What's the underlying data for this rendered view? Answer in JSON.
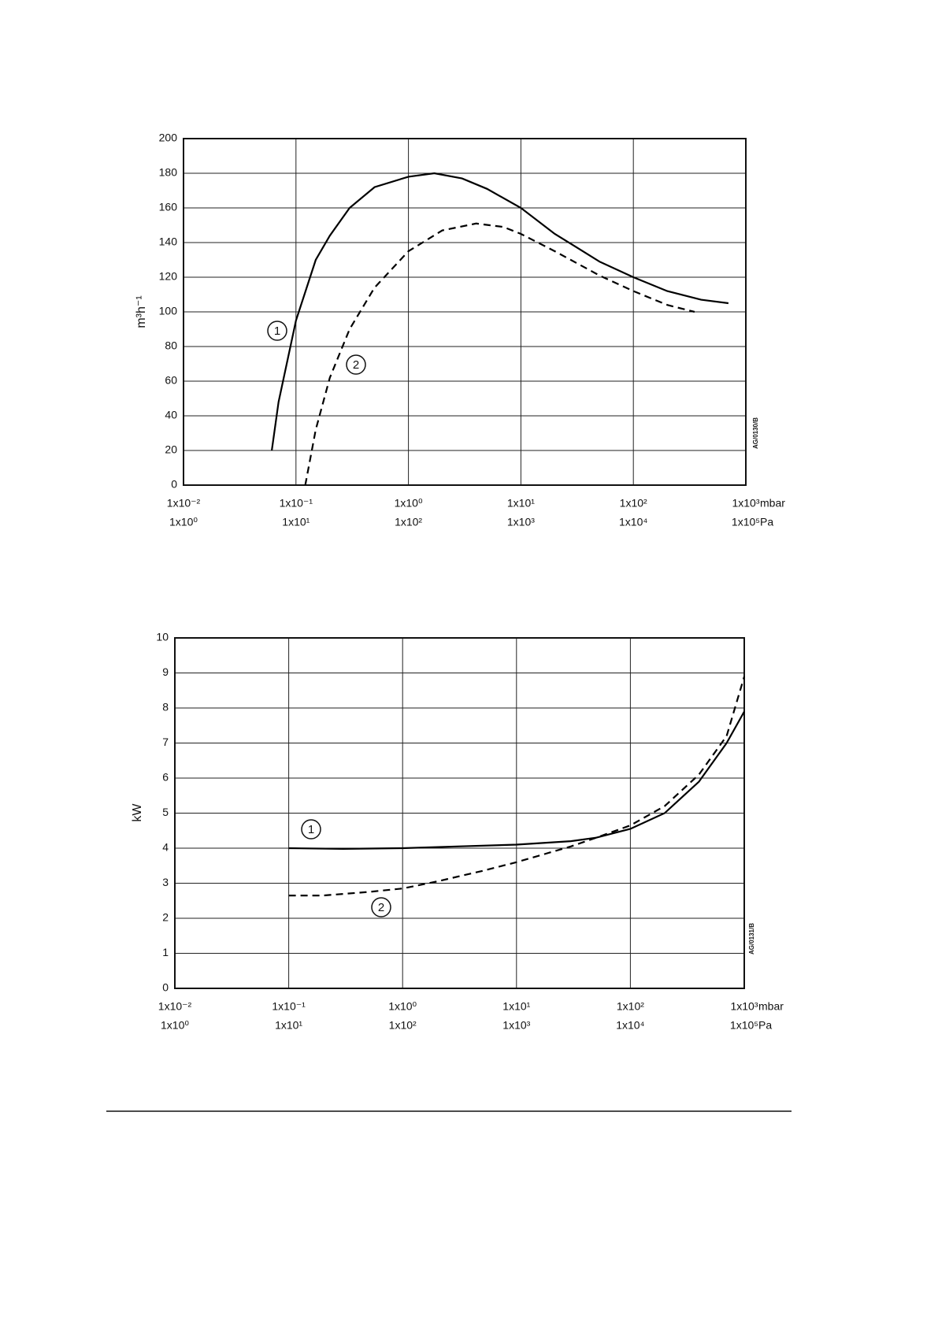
{
  "chart_data": [
    {
      "type": "line",
      "y_label": "m³h⁻¹",
      "x_unit": "mbar",
      "x2_unit": "Pa",
      "annotation": "AG/0130/B",
      "xscale": "log",
      "grid": true,
      "xlim": [
        0.01,
        1000
      ],
      "xticks": [
        {
          "value": 0.01,
          "label": "1x10⁻²"
        },
        {
          "value": 0.1,
          "label": "1x10⁻¹"
        },
        {
          "value": 1,
          "label": "1x10⁰"
        },
        {
          "value": 10,
          "label": "1x10¹"
        },
        {
          "value": 100,
          "label": "1x10²"
        },
        {
          "value": 1000,
          "label": "1x10³"
        }
      ],
      "x2ticks": [
        {
          "value": 0.01,
          "label": "1x10⁰"
        },
        {
          "value": 0.1,
          "label": "1x10¹"
        },
        {
          "value": 1,
          "label": "1x10²"
        },
        {
          "value": 10,
          "label": "1x10³"
        },
        {
          "value": 100,
          "label": "1x10⁴"
        },
        {
          "value": 1000,
          "label": "1x10⁵"
        }
      ],
      "ylim": [
        0,
        200
      ],
      "yticks": [
        0,
        20,
        40,
        60,
        80,
        100,
        120,
        140,
        160,
        180,
        200
      ],
      "series": [
        {
          "name": "1",
          "color": "#000000",
          "dashed": false,
          "x": [
            0.061,
            0.07,
            0.1,
            0.15,
            0.2,
            0.3,
            0.5,
            1,
            1.7,
            3,
            5,
            10,
            20,
            30,
            50,
            100,
            200,
            400,
            700
          ],
          "values": [
            20,
            48,
            95,
            130,
            144,
            160,
            172,
            178,
            180,
            177,
            171,
            160,
            145,
            138,
            129,
            120,
            112,
            107,
            105
          ]
        },
        {
          "name": "2",
          "color": "#000000",
          "dashed": true,
          "x": [
            0.121,
            0.15,
            0.2,
            0.3,
            0.5,
            1,
            2,
            4,
            7,
            10,
            20,
            50,
            100,
            200,
            350
          ],
          "values": [
            0,
            32,
            62,
            90,
            114,
            135,
            147,
            151,
            149,
            145,
            135,
            121,
            112,
            104,
            100
          ]
        }
      ]
    },
    {
      "type": "line",
      "y_label": "kW",
      "x_unit": "mbar",
      "x2_unit": "Pa",
      "annotation": "AG/0131/B",
      "xscale": "log",
      "grid": true,
      "xlim": [
        0.01,
        1000
      ],
      "xticks": [
        {
          "value": 0.01,
          "label": "1x10⁻²"
        },
        {
          "value": 0.1,
          "label": "1x10⁻¹"
        },
        {
          "value": 1,
          "label": "1x10⁰"
        },
        {
          "value": 10,
          "label": "1x10¹"
        },
        {
          "value": 100,
          "label": "1x10²"
        },
        {
          "value": 1000,
          "label": "1x10³"
        }
      ],
      "x2ticks": [
        {
          "value": 0.01,
          "label": "1x10⁰"
        },
        {
          "value": 0.1,
          "label": "1x10¹"
        },
        {
          "value": 1,
          "label": "1x10²"
        },
        {
          "value": 10,
          "label": "1x10³"
        },
        {
          "value": 100,
          "label": "1x10⁴"
        },
        {
          "value": 1000,
          "label": "1x10⁵"
        }
      ],
      "ylim": [
        0,
        10
      ],
      "yticks": [
        0,
        1,
        2,
        3,
        4,
        5,
        6,
        7,
        8,
        9,
        10
      ],
      "series": [
        {
          "name": "1",
          "color": "#000000",
          "dashed": false,
          "x": [
            0.1,
            0.3,
            1,
            3,
            10,
            30,
            50,
            100,
            200,
            400,
            700,
            1000
          ],
          "values": [
            4.0,
            3.98,
            4.0,
            4.05,
            4.1,
            4.2,
            4.3,
            4.55,
            5.0,
            5.9,
            7.0,
            7.9
          ]
        },
        {
          "name": "2",
          "color": "#000000",
          "dashed": true,
          "x": [
            0.1,
            0.2,
            0.5,
            1,
            2,
            5,
            10,
            30,
            50,
            100,
            200,
            400,
            700,
            1000
          ],
          "values": [
            2.65,
            2.65,
            2.75,
            2.85,
            3.05,
            3.35,
            3.6,
            4.05,
            4.3,
            4.65,
            5.2,
            6.1,
            7.2,
            8.9
          ]
        }
      ]
    }
  ]
}
